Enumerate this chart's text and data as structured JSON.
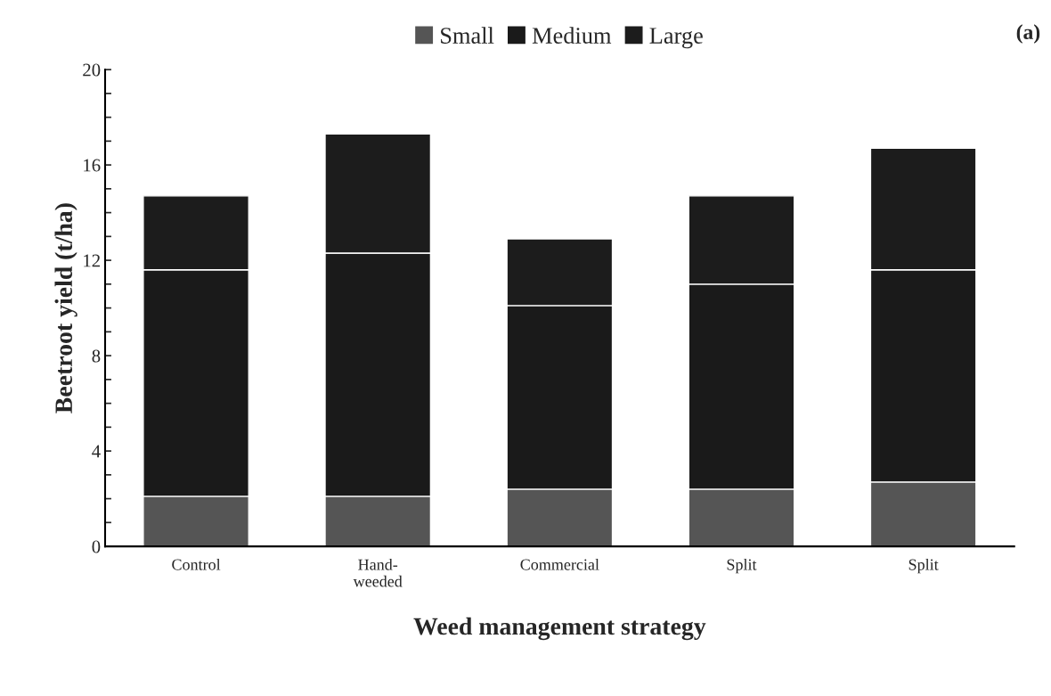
{
  "chart_data": {
    "type": "bar",
    "stacked": true,
    "xlabel": "Weed management strategy",
    "ylabel": "Beetroot yield (t/ha)",
    "categories": [
      "Control",
      "Hand-\nweeded",
      "Commercial",
      "Split",
      "Split"
    ],
    "series": [
      {
        "name": "Small",
        "color": "#555555",
        "values": [
          2.1,
          2.1,
          2.4,
          2.4,
          2.7
        ]
      },
      {
        "name": "Medium",
        "color": "#1a1a1a",
        "values": [
          9.5,
          10.2,
          7.7,
          8.6,
          8.9
        ]
      },
      {
        "name": "Large",
        "color": "#1c1c1c",
        "values": [
          3.1,
          5.0,
          2.8,
          3.7,
          5.1
        ]
      }
    ],
    "ylim": [
      0,
      20
    ],
    "yticks": [
      0,
      {
        "value": 1,
        "label": null
      },
      {
        "value": 2,
        "label": null
      },
      {
        "value": 3,
        "label": null
      },
      4,
      {
        "value": 5,
        "label": null
      },
      {
        "value": 6,
        "label": null
      },
      {
        "value": 7,
        "label": null
      },
      8,
      {
        "value": 9,
        "label": null
      },
      {
        "value": 10,
        "label": null
      },
      {
        "value": 11,
        "label": null
      },
      12,
      {
        "value": 13,
        "label": null
      },
      {
        "value": 14,
        "label": null
      },
      {
        "value": 15,
        "label": null
      },
      16,
      {
        "value": 17,
        "label": null
      },
      {
        "value": 18,
        "label": null
      },
      {
        "value": 19,
        "label": null
      },
      20
    ],
    "annotations": [
      "(a)"
    ],
    "legend": "top",
    "grid": false
  }
}
